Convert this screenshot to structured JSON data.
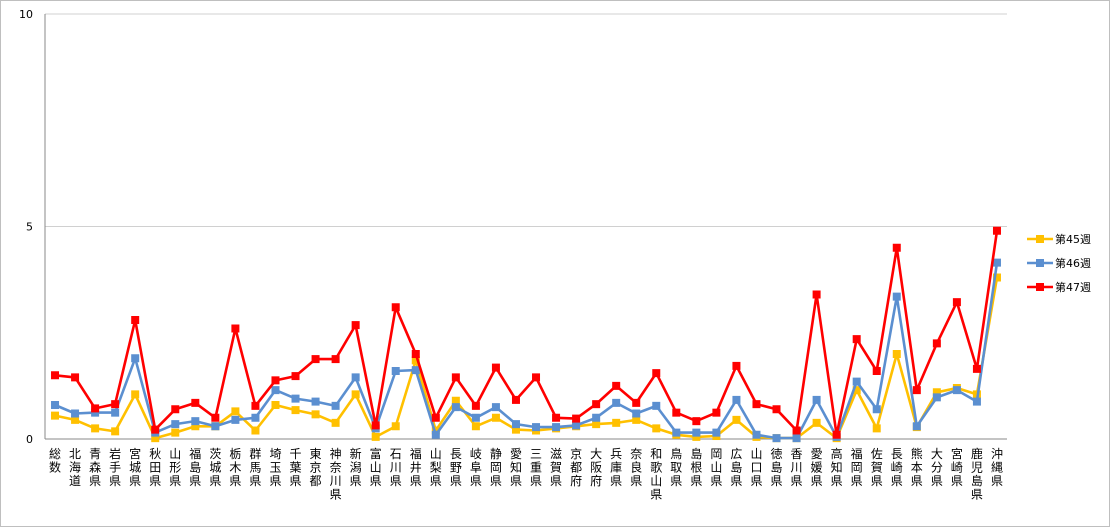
{
  "chart_data": {
    "type": "line",
    "ylim": [
      0,
      10
    ],
    "yticks": [
      0,
      5,
      10
    ],
    "grid": "horizontal",
    "legend_position": "right",
    "categories": [
      "総数",
      "北海道",
      "青森県",
      "岩手県",
      "宮城県",
      "秋田県",
      "山形県",
      "福島県",
      "茨城県",
      "栃木県",
      "群馬県",
      "埼玉県",
      "千葉県",
      "東京都",
      "神奈川県",
      "新潟県",
      "富山県",
      "石川県",
      "福井県",
      "山梨県",
      "長野県",
      "岐阜県",
      "静岡県",
      "愛知県",
      "三重県",
      "滋賀県",
      "京都府",
      "大阪府",
      "兵庫県",
      "奈良県",
      "和歌山県",
      "鳥取県",
      "島根県",
      "岡山県",
      "広島県",
      "山口県",
      "徳島県",
      "香川県",
      "愛媛県",
      "高知県",
      "福岡県",
      "佐賀県",
      "長崎県",
      "熊本県",
      "大分県",
      "宮崎県",
      "鹿児島県",
      "沖縄県"
    ],
    "series": [
      {
        "name": "第45週",
        "color": "#ffc000",
        "values": [
          0.55,
          0.45,
          0.25,
          0.18,
          1.05,
          0.02,
          0.15,
          0.3,
          0.3,
          0.65,
          0.2,
          0.8,
          0.68,
          0.58,
          0.38,
          1.05,
          0.05,
          0.3,
          1.85,
          0.2,
          0.9,
          0.3,
          0.5,
          0.22,
          0.2,
          0.25,
          0.3,
          0.35,
          0.38,
          0.45,
          0.25,
          0.1,
          0.05,
          0.07,
          0.45,
          0.05,
          0.02,
          0.02,
          0.38,
          0.02,
          1.15,
          0.25,
          2.0,
          0.28,
          1.1,
          1.2,
          1.05,
          3.8
        ]
      },
      {
        "name": "第46週",
        "color": "#5b8fd0",
        "values": [
          0.8,
          0.6,
          0.62,
          0.62,
          1.9,
          0.15,
          0.35,
          0.42,
          0.3,
          0.45,
          0.5,
          1.15,
          0.95,
          0.88,
          0.78,
          1.45,
          0.25,
          1.6,
          1.62,
          0.1,
          0.75,
          0.5,
          0.75,
          0.35,
          0.28,
          0.28,
          0.32,
          0.5,
          0.85,
          0.6,
          0.78,
          0.15,
          0.15,
          0.15,
          0.92,
          0.1,
          0.02,
          0.02,
          0.92,
          0.05,
          1.35,
          0.7,
          3.35,
          0.3,
          0.98,
          1.15,
          0.88,
          4.15
        ]
      },
      {
        "name": "第47週",
        "color": "#ff0000",
        "values": [
          1.5,
          1.45,
          0.72,
          0.82,
          2.8,
          0.22,
          0.7,
          0.85,
          0.5,
          2.6,
          0.78,
          1.38,
          1.48,
          1.88,
          1.88,
          2.68,
          0.32,
          3.1,
          2.0,
          0.5,
          1.45,
          0.78,
          1.68,
          0.92,
          1.45,
          0.5,
          0.48,
          0.82,
          1.25,
          0.85,
          1.55,
          0.62,
          0.42,
          0.62,
          1.72,
          0.82,
          0.7,
          0.2,
          3.4,
          0.1,
          2.35,
          1.6,
          4.5,
          1.15,
          2.25,
          3.22,
          1.65,
          4.9
        ]
      }
    ]
  }
}
